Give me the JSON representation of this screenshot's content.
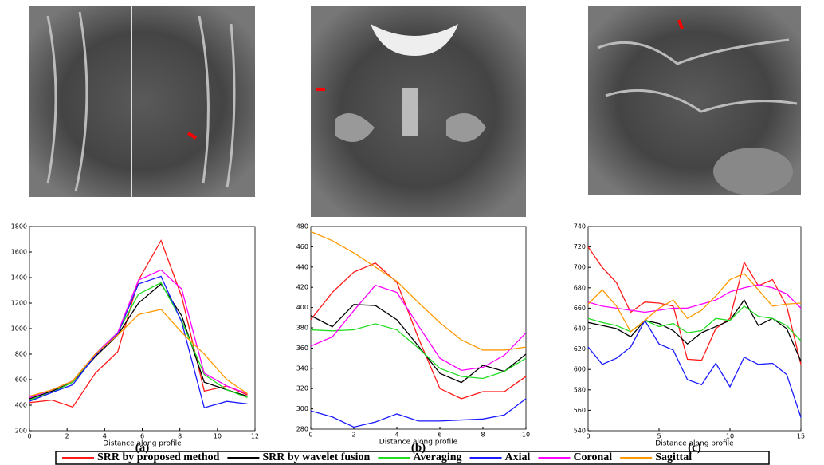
{
  "chart_data": [
    {
      "type": "line",
      "xlabel": "Distance along profile",
      "caption": "(a)",
      "x": [
        0,
        1.2,
        2.3,
        3.5,
        4.7,
        5.8,
        7,
        8.1,
        9.3,
        10.5,
        11.6
      ],
      "xlim": [
        0,
        12
      ],
      "xticks": [
        0,
        2,
        4,
        6,
        8,
        10,
        12
      ],
      "ylim": [
        200,
        1800
      ],
      "yticks": [
        200,
        400,
        600,
        800,
        1000,
        1200,
        1400,
        1600,
        1800
      ],
      "series": [
        {
          "name": "SRR by proposed method",
          "color": "#ff1a1a",
          "values": [
            420,
            440,
            385,
            650,
            820,
            1380,
            1690,
            1250,
            510,
            550,
            480
          ]
        },
        {
          "name": "SRR by wavelet fusion",
          "color": "#000000",
          "values": [
            450,
            510,
            580,
            780,
            950,
            1200,
            1350,
            1100,
            580,
            520,
            470
          ]
        },
        {
          "name": "Averaging",
          "color": "#22dd22",
          "values": [
            440,
            500,
            580,
            800,
            970,
            1270,
            1360,
            1060,
            640,
            520,
            460
          ]
        },
        {
          "name": "Axial",
          "color": "#1a1aff",
          "values": [
            430,
            500,
            560,
            790,
            960,
            1350,
            1410,
            1050,
            380,
            430,
            410
          ]
        },
        {
          "name": "Coronal",
          "color": "#ff00ff",
          "values": [
            460,
            520,
            590,
            800,
            970,
            1380,
            1460,
            1310,
            650,
            550,
            490
          ]
        },
        {
          "name": "Sagittal",
          "color": "#ff9900",
          "values": [
            470,
            520,
            590,
            800,
            950,
            1110,
            1150,
            970,
            800,
            600,
            490
          ]
        }
      ]
    },
    {
      "type": "line",
      "xlabel": "Distance along profile",
      "caption": "(b)",
      "x": [
        0,
        1,
        2,
        3,
        4,
        5,
        6,
        7,
        8,
        9,
        10
      ],
      "xlim": [
        0,
        10
      ],
      "xticks": [
        0,
        2,
        4,
        6,
        8,
        10
      ],
      "ylim": [
        280,
        480
      ],
      "yticks": [
        280,
        300,
        320,
        340,
        360,
        380,
        400,
        420,
        440,
        460,
        480
      ],
      "series": [
        {
          "color": "#ff1a1a",
          "values": [
            388,
            415,
            435,
            444,
            425,
            370,
            320,
            310,
            317,
            317,
            332
          ]
        },
        {
          "color": "#000000",
          "values": [
            392,
            381,
            403,
            402,
            388,
            362,
            335,
            326,
            343,
            337,
            354
          ]
        },
        {
          "color": "#22dd22",
          "values": [
            378,
            377,
            378,
            384,
            378,
            360,
            340,
            332,
            330,
            337,
            350
          ]
        },
        {
          "color": "#1a1aff",
          "values": [
            298,
            292,
            282,
            287,
            295,
            288,
            288,
            289,
            290,
            294,
            310
          ]
        },
        {
          "color": "#ff00ff",
          "values": [
            362,
            371,
            397,
            422,
            415,
            382,
            350,
            338,
            341,
            353,
            375
          ]
        },
        {
          "color": "#ff9900",
          "values": [
            475,
            466,
            454,
            440,
            426,
            405,
            385,
            368,
            358,
            358,
            361
          ]
        }
      ]
    },
    {
      "type": "line",
      "xlabel": "Distance along profile",
      "caption": "(c)",
      "x": [
        0,
        1,
        2,
        3,
        4,
        5,
        6,
        7,
        8,
        9,
        10,
        11,
        12,
        13,
        14,
        15
      ],
      "xlim": [
        0,
        15
      ],
      "xticks": [
        0,
        5,
        10,
        15
      ],
      "ylim": [
        540,
        740
      ],
      "yticks": [
        540,
        560,
        580,
        600,
        620,
        640,
        660,
        680,
        700,
        720,
        740
      ],
      "series": [
        {
          "color": "#ff1a1a",
          "values": [
            720,
            700,
            685,
            656,
            666,
            665,
            662,
            610,
            609,
            640,
            650,
            705,
            682,
            688,
            662,
            605
          ]
        },
        {
          "color": "#000000",
          "values": [
            646,
            643,
            640,
            632,
            648,
            645,
            638,
            625,
            636,
            642,
            648,
            668,
            643,
            650,
            640,
            608
          ]
        },
        {
          "color": "#22dd22",
          "values": [
            650,
            646,
            643,
            637,
            648,
            642,
            645,
            636,
            638,
            650,
            648,
            662,
            652,
            650,
            643,
            628
          ]
        },
        {
          "color": "#1a1aff",
          "values": [
            622,
            605,
            611,
            622,
            648,
            625,
            619,
            590,
            585,
            606,
            583,
            612,
            605,
            606,
            595,
            553
          ]
        },
        {
          "color": "#ff00ff",
          "values": [
            666,
            662,
            660,
            658,
            656,
            658,
            660,
            660,
            664,
            668,
            676,
            680,
            683,
            680,
            674,
            660
          ]
        },
        {
          "color": "#ff9900",
          "values": [
            664,
            678,
            662,
            637,
            648,
            660,
            668,
            650,
            658,
            672,
            688,
            694,
            678,
            662,
            664,
            665
          ]
        }
      ]
    }
  ]
}
